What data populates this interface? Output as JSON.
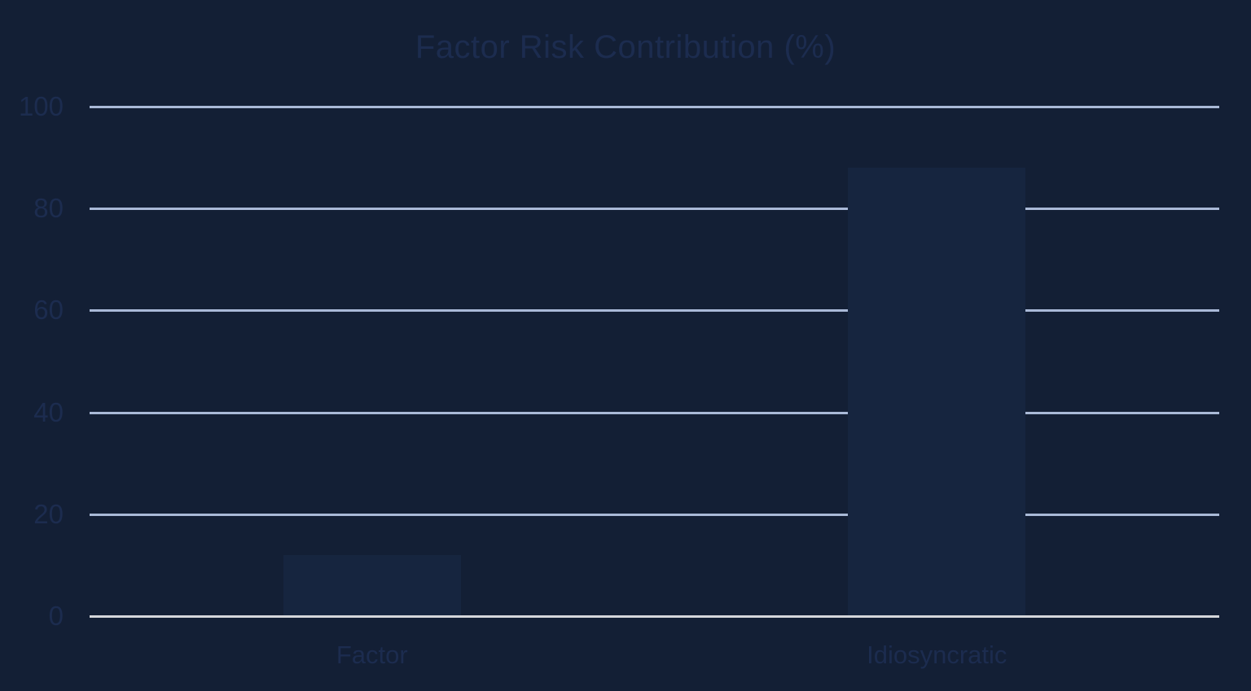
{
  "chart": {
    "title": "Factor Risk Contribution (%)"
  },
  "chart_data": {
    "type": "bar",
    "title": "Factor Risk Contribution (%)",
    "categories": [
      "Factor",
      "Idiosyncratic"
    ],
    "values": [
      12,
      88
    ],
    "xlabel": "",
    "ylabel": "",
    "ylim": [
      0,
      100
    ],
    "yticks": [
      0,
      20,
      40,
      60,
      80,
      100
    ],
    "grid": true,
    "legend": false,
    "colors": {
      "background": "#131F35",
      "bar": "#16253F",
      "gridline": "#A9B9D7",
      "zero_line": "#D4D6DA",
      "text": "#1C2C4F"
    }
  }
}
